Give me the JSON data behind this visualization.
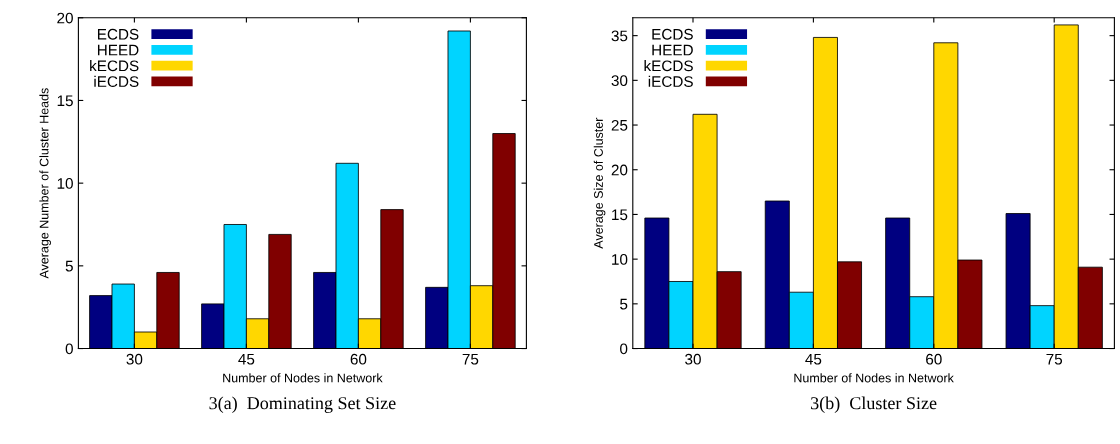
{
  "chart_data": [
    {
      "type": "bar",
      "title": "3(a)  Dominating Set Size",
      "xlabel": "Number of Nodes in Network",
      "ylabel": "Average Number of Cluster Heads",
      "categories": [
        "30",
        "45",
        "60",
        "75"
      ],
      "ylim": [
        0,
        20
      ],
      "yticks": [
        0,
        5,
        10,
        15,
        20
      ],
      "legend": "top left",
      "grid": false,
      "series": [
        {
          "name": "ECDS",
          "color": "#000080",
          "values": [
            3.2,
            2.7,
            4.6,
            3.7
          ]
        },
        {
          "name": "HEED",
          "color": "#00d4ff",
          "values": [
            3.9,
            7.5,
            11.2,
            19.2
          ]
        },
        {
          "name": "kECDS",
          "color": "#ffd700",
          "values": [
            1.0,
            1.8,
            1.8,
            3.8
          ]
        },
        {
          "name": "iECDS",
          "color": "#800000",
          "values": [
            4.6,
            6.9,
            8.4,
            13.0
          ]
        }
      ]
    },
    {
      "type": "bar",
      "title": "3(b)  Cluster Size",
      "xlabel": "Number of Nodes in Network",
      "ylabel": "Average Size of Cluster",
      "categories": [
        "30",
        "45",
        "60",
        "75"
      ],
      "ylim": [
        0,
        37
      ],
      "yticks": [
        0,
        5,
        10,
        15,
        20,
        25,
        30,
        35
      ],
      "legend": "top left",
      "grid": false,
      "series": [
        {
          "name": "ECDS",
          "color": "#000080",
          "values": [
            14.6,
            16.5,
            14.6,
            15.1
          ]
        },
        {
          "name": "HEED",
          "color": "#00d4ff",
          "values": [
            7.5,
            6.3,
            5.8,
            4.8
          ]
        },
        {
          "name": "kECDS",
          "color": "#ffd700",
          "values": [
            26.2,
            34.8,
            34.2,
            36.2
          ]
        },
        {
          "name": "iECDS",
          "color": "#800000",
          "values": [
            8.6,
            9.7,
            9.9,
            9.1
          ]
        }
      ]
    }
  ]
}
